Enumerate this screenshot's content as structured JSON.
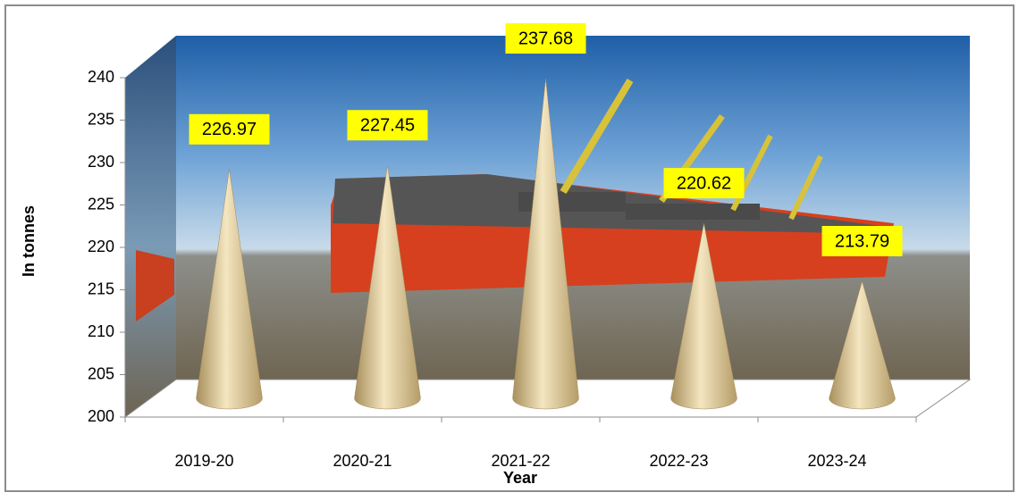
{
  "chart_data": {
    "type": "cone",
    "categories": [
      "2019-20",
      "2020-21",
      "2021-22",
      "2022-23",
      "2023-24"
    ],
    "values": [
      226.97,
      227.45,
      237.68,
      220.62,
      213.79
    ],
    "color": "#e2cfa0",
    "ylim": [
      200,
      240
    ],
    "yticks": [
      200,
      205,
      210,
      215,
      220,
      225,
      230,
      235,
      240
    ],
    "y_label": "In tonnes",
    "x_label": "Year",
    "grid": false
  }
}
